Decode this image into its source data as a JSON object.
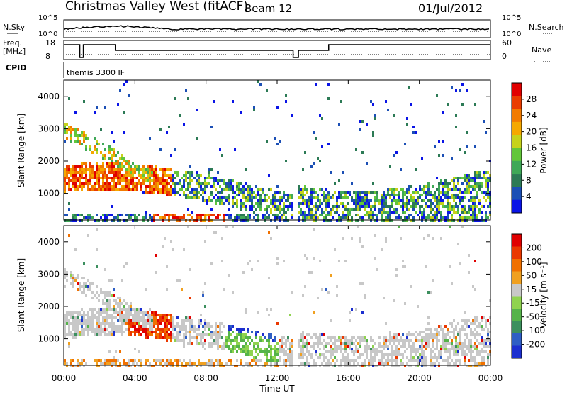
{
  "header": {
    "station": "Christmas Valley West (fitACF)",
    "beam": "Beam 12",
    "date": "01/Jul/2012"
  },
  "top_panels": {
    "nsky_label": "N.Sky",
    "nsky_ticks": [
      "10^5",
      "10^0"
    ],
    "nsearch_label": "N.Search",
    "nsearch_ticks": [
      "10^5",
      "10^0"
    ],
    "freq_label": "Freq.",
    "freq_unit": "[MHz]",
    "freq_ticks": [
      "18",
      "8"
    ],
    "nave_label": "Nave",
    "nave_ticks": [
      "60",
      "0"
    ],
    "cpid_label": "CPID",
    "cpid_value": "themis 3300 IF"
  },
  "chart_data": [
    {
      "type": "heatmap",
      "name_in_colorbar": "Power [dB]",
      "ylabel": "Slant Range [km]",
      "yticks": [
        "1000",
        "2000",
        "3000",
        "4000"
      ],
      "ylim": [
        180,
        4500
      ],
      "colorbar": {
        "label": "Power [dB]",
        "ticks": [
          "4",
          "8",
          "12",
          "16",
          "20",
          "24",
          "28"
        ],
        "colors": [
          "#0a14e6",
          "#1b4fb5",
          "#2c7a55",
          "#3fa857",
          "#62c63a",
          "#c6d21b",
          "#f5a800",
          "#f27b00",
          "#ea3c00",
          "#e10000"
        ]
      }
    },
    {
      "type": "heatmap",
      "ylabel": "Slant Range [km]",
      "yticks": [
        "1000",
        "2000",
        "3000",
        "4000"
      ],
      "ylim": [
        180,
        4500
      ],
      "colorbar": {
        "label": "Velocity [m s⁻¹]",
        "ticks": [
          "200",
          "100",
          "50",
          "15",
          "-15",
          "-50",
          "-100",
          "-200"
        ],
        "colors": [
          "#1c2fcf",
          "#2e5ec4",
          "#3c8f5e",
          "#55b34a",
          "#8fd34f",
          "#c8c8c8",
          "#f0a020",
          "#f07000",
          "#ea3800",
          "#e00000"
        ]
      }
    }
  ],
  "xaxis": {
    "label": "Time UT",
    "ticks": [
      "00:00",
      "04:00",
      "08:00",
      "12:00",
      "16:00",
      "20:00",
      "00:00"
    ]
  }
}
